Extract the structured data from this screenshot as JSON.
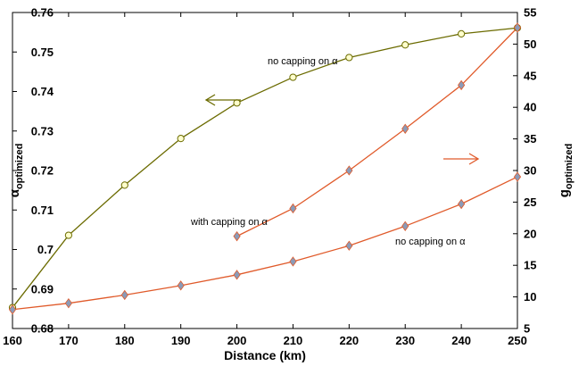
{
  "chart_data": {
    "type": "line",
    "title": "",
    "xlabel": "Distance (km)",
    "ylabel_left": {
      "main": "α",
      "sub": "optimized"
    },
    "ylabel_right": {
      "main": "g",
      "sub": "optimized"
    },
    "xlim": [
      160,
      250
    ],
    "ylim_left": [
      0.68,
      0.76
    ],
    "ylim_right": [
      5,
      55
    ],
    "x_ticks": [
      160,
      170,
      180,
      190,
      200,
      210,
      220,
      230,
      240,
      250
    ],
    "y_left_ticks": [
      "0.68",
      "0.69",
      "0.7",
      "0.71",
      "0.72",
      "0.73",
      "0.74",
      "0.75",
      "0.76"
    ],
    "y_right_ticks": [
      "5",
      "10",
      "15",
      "20",
      "25",
      "30",
      "35",
      "40",
      "45",
      "50",
      "55"
    ],
    "grid": false,
    "series": [
      {
        "axis": "left",
        "color": "#6b6b00",
        "marker": "circle",
        "marker_fill": "#ffffcc",
        "x": [
          160,
          170,
          180,
          190,
          200,
          210,
          220,
          230,
          240,
          250
        ],
        "y": [
          0.6853,
          0.7036,
          0.7163,
          0.7281,
          0.7371,
          0.7436,
          0.7486,
          0.7518,
          0.7546,
          0.7561
        ]
      },
      {
        "axis": "right",
        "color": "#e05a2a",
        "marker": "diamond",
        "marker_fill": "#8a9bb8",
        "x": [
          160,
          170,
          180,
          190,
          200,
          210,
          220,
          230,
          240,
          250
        ],
        "y": [
          8.0,
          9.0,
          10.3,
          11.8,
          13.5,
          15.6,
          18.1,
          21.2,
          24.7,
          29.0
        ]
      },
      {
        "axis": "right",
        "color": "#e05a2a",
        "marker": "diamond",
        "marker_fill": "#8a9bb8",
        "x": [
          200,
          210,
          220,
          230,
          240,
          250
        ],
        "y": [
          19.6,
          24.0,
          30.0,
          36.6,
          43.5,
          52.6
        ]
      }
    ],
    "annotations": {
      "no_capping_top": "no capping on α",
      "with_capping": "with capping on α",
      "no_capping_bottom": "no capping on α"
    },
    "arrow_colors": {
      "left": "#6b6b00",
      "right": "#e05a2a"
    }
  }
}
